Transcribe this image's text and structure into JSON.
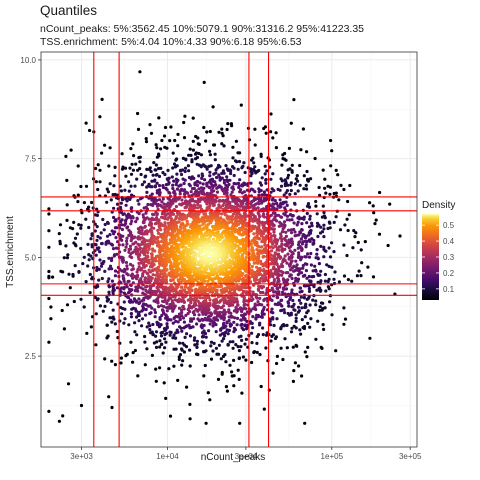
{
  "chart_data": {
    "type": "scatter",
    "title": "Quantiles",
    "subtitle_lines": [
      "nCount_peaks: 5%:3562.45 10%:5079.1 90%:31316.2 95%:41223.35",
      "TSS.enrichment: 5%:4.04 10%:4.33 90%:6.18 95%:6.53"
    ],
    "xlabel": "nCount_peaks",
    "ylabel": "TSS.enrichment",
    "x_scale": "log10",
    "xlim": [
      1700,
      330000
    ],
    "ylim": [
      0.2,
      10.2
    ],
    "x_ticks": [
      3000,
      10000,
      30000,
      100000,
      300000
    ],
    "x_tick_labels": [
      "3e+03",
      "1e+04",
      "3e+04",
      "1e+05",
      "3e+05"
    ],
    "y_ticks": [
      2.5,
      5.0,
      7.5,
      10.0
    ],
    "y_tick_labels": [
      "2.5",
      "5.0",
      "7.5",
      "10.0"
    ],
    "grid": true,
    "quantile_lines": {
      "color": "#ff0000",
      "x": [
        3562.45,
        5079.1,
        31316.2,
        41223.35
      ],
      "y": [
        4.04,
        4.33,
        6.18,
        6.53
      ]
    },
    "density_center": {
      "nCount_peaks": 18000,
      "TSS.enrichment": 5.1
    },
    "legend": {
      "title": "Density",
      "position": "right",
      "ticks": [
        0.1,
        0.2,
        0.3,
        0.4,
        0.5
      ],
      "tick_labels": [
        "0.1",
        "0.2",
        "0.3",
        "0.4",
        "0.5"
      ],
      "range": [
        0.03,
        0.57
      ],
      "colormap": "inferno"
    },
    "sample_points": [
      {
        "x": 1900,
        "y": 1.1
      },
      {
        "x": 2200,
        "y": 0.85
      },
      {
        "x": 2500,
        "y": 1.8
      },
      {
        "x": 4000,
        "y": 9.0
      },
      {
        "x": 6800,
        "y": 9.7
      },
      {
        "x": 3200,
        "y": 8.4
      },
      {
        "x": 10500,
        "y": 8.3
      },
      {
        "x": 80000,
        "y": 6.3
      },
      {
        "x": 160000,
        "y": 5.4
      },
      {
        "x": 220000,
        "y": 5.3
      },
      {
        "x": 4600,
        "y": 1.2
      },
      {
        "x": 30000,
        "y": 2.4
      },
      {
        "x": 6600,
        "y": 2.0
      },
      {
        "x": 2000,
        "y": 4.5
      },
      {
        "x": 3000,
        "y": 1.25
      }
    ]
  }
}
